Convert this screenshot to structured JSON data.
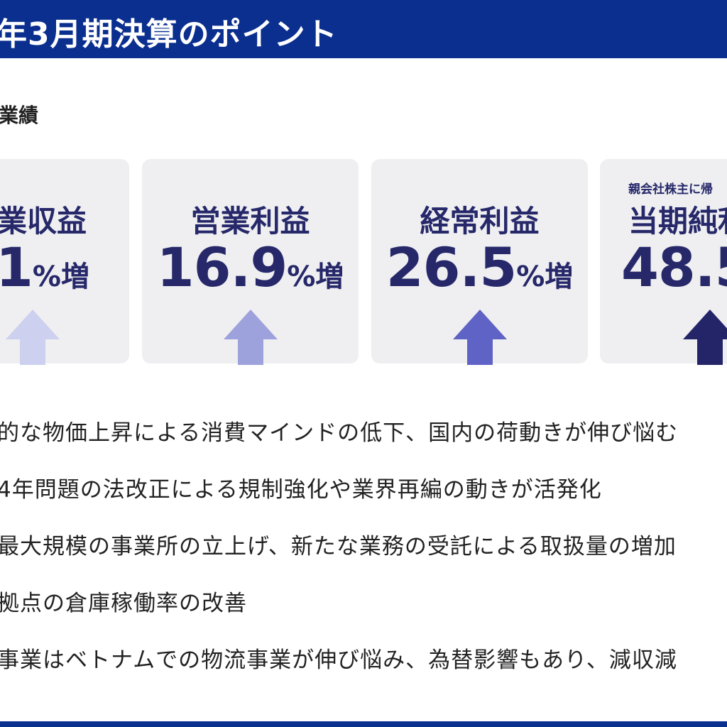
{
  "header": {
    "title": "年3月期決算のポイント"
  },
  "section": {
    "label": "業績"
  },
  "cards": [
    {
      "sublabel": "",
      "label": "業収益",
      "value": "1",
      "unit": "%増",
      "arrow_color": "#cdd0ee"
    },
    {
      "sublabel": "",
      "label": "営業利益",
      "value": "16.9",
      "unit": "%増",
      "arrow_color": "#9ea2dc"
    },
    {
      "sublabel": "",
      "label": "経常利益",
      "value": "26.5",
      "unit": "%増",
      "arrow_color": "#5f63c5"
    },
    {
      "sublabel": "親会社株主に帰",
      "label": "当期純利",
      "value": "48.5",
      "unit": "",
      "arrow_color": "#242569"
    }
  ],
  "bullets": [
    "的な物価上昇による消費マインドの低下、国内の荷動きが伸び悩む",
    "4年問題の法改正による規制強化や業界再編の動きが活発化",
    "最大規模の事業所の立上げ、新たな業務の受託による取扱量の増加",
    "拠点の倉庫稼働率の改善",
    "事業はベトナムでの物流事業が伸び悩み、為替影響もあり、減収減"
  ],
  "colors": {
    "brand": "#0b2f8f",
    "card_bg": "#efeff1",
    "text_dark": "#26286a"
  }
}
